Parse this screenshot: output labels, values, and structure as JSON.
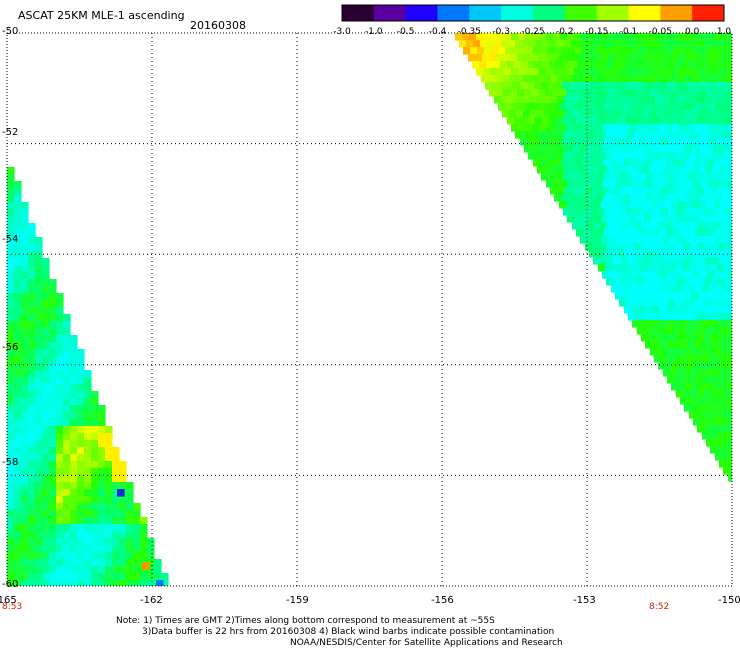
{
  "header": {
    "title": "ASCAT 25KM MLE-1 ascending",
    "date": "20160308"
  },
  "colorbar": {
    "labels": [
      "-3.0",
      "-1.0",
      "-0.5",
      "-0.4",
      "-0.35",
      "-0.3",
      "-0.25",
      "-0.2",
      "-0.15",
      "-0.1",
      "-0.05",
      "0.0",
      "1.0"
    ],
    "colors": [
      "#2a0030",
      "#5a00a0",
      "#1e00ff",
      "#0078ff",
      "#00c8ff",
      "#00ffe0",
      "#00ff80",
      "#40ff00",
      "#a0ff00",
      "#ffff00",
      "#ffa000",
      "#ff2000"
    ]
  },
  "axes": {
    "lat_labels": [
      "-50",
      "-52",
      "-54",
      "-56",
      "-58",
      "-60"
    ],
    "lon_labels": [
      "-165",
      "-162",
      "-159",
      "-156",
      "-153",
      "-150"
    ],
    "lat_range": [
      -60,
      -50
    ],
    "lon_range": [
      -165,
      -150
    ]
  },
  "times": {
    "left": "8:53",
    "right": "8:52"
  },
  "notes": {
    "line1": "Note: 1) Times are GMT 2)Times along bottom correspond to measurement at ~55S",
    "line2": "3)Data buffer is 22 hrs from 20160308 4) Black wind barbs indicate possible contamination",
    "line3": "NOAA/NESDIS/Center for Satellite Applications and Research"
  }
}
